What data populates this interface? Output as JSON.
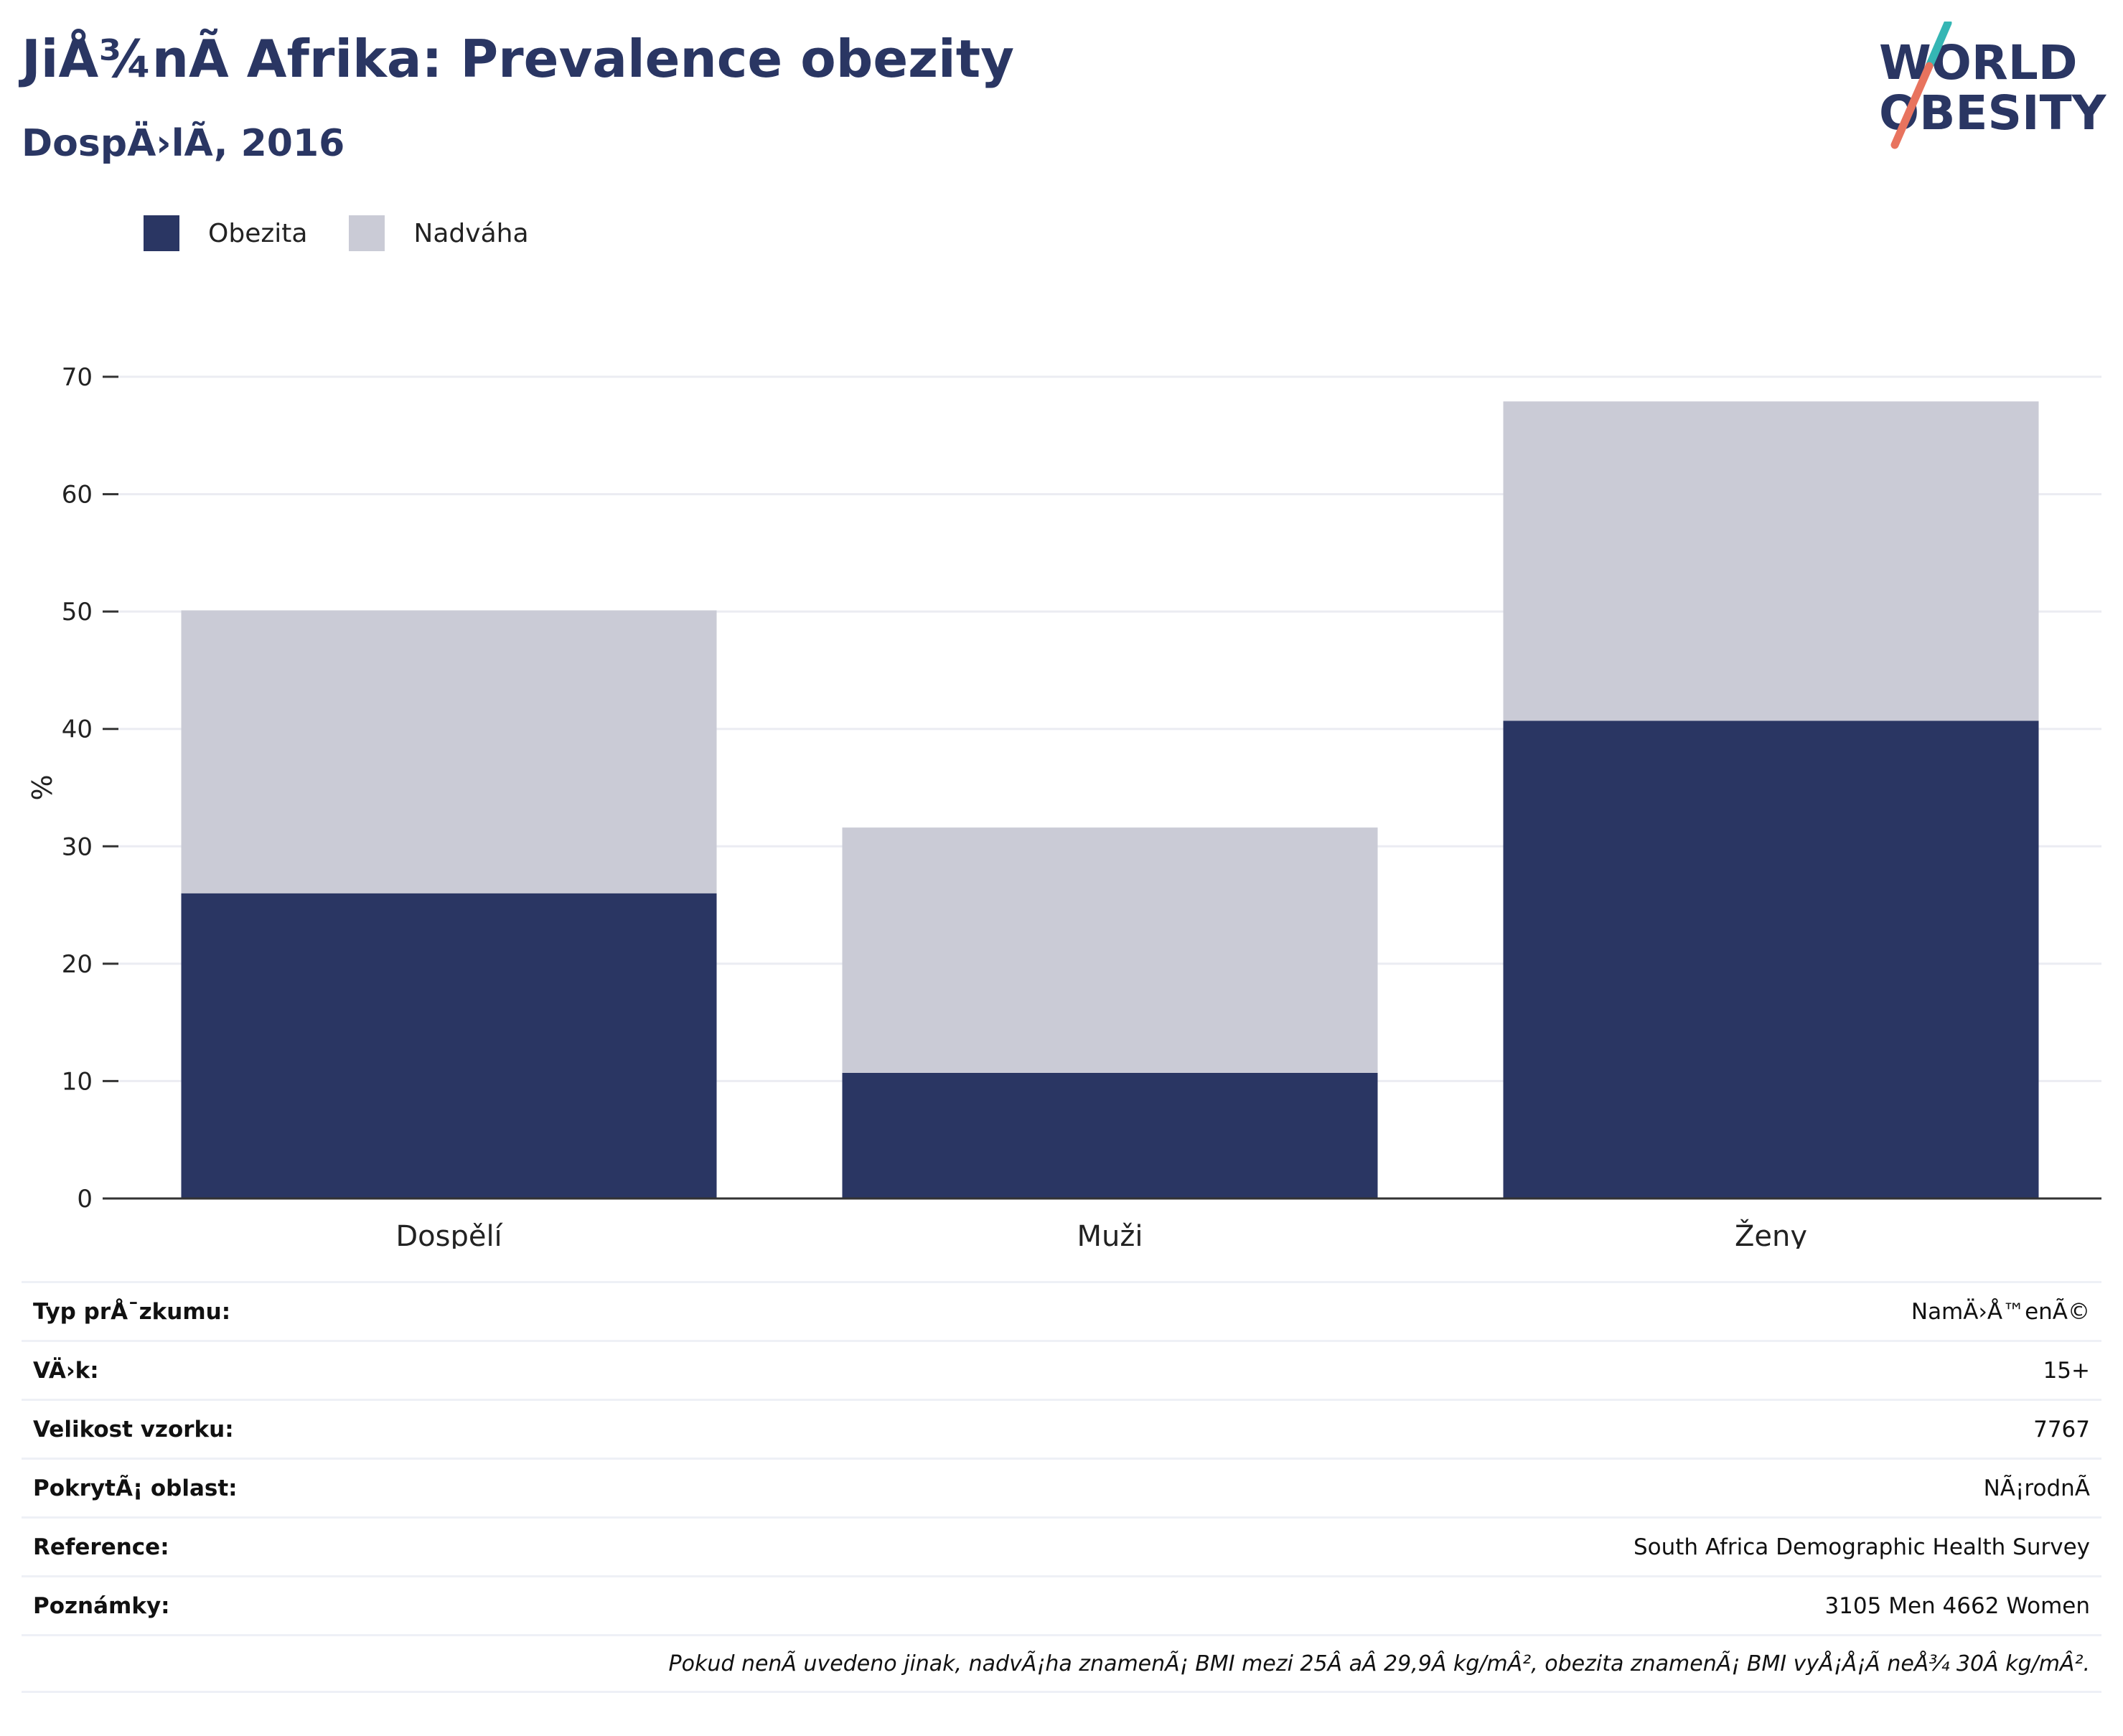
{
  "header": {
    "title": "JiÅ¾nÃ Afrika: Prevalence obezity",
    "subtitle": "DospÄ›lÃ, 2016"
  },
  "logo": {
    "line1": "WORLD",
    "line2": "OBESITY",
    "accent_colors": [
      "#35b6b4",
      "#e8735e"
    ],
    "text_color": "#2a3663"
  },
  "legend": {
    "items": [
      {
        "label": "Obezita",
        "color": "#2a3663"
      },
      {
        "label": "Nadváha",
        "color": "#cacbd6"
      }
    ]
  },
  "chart_data": {
    "type": "bar",
    "stacked": true,
    "categories": [
      "Dospělí",
      "Muži",
      "Ženy"
    ],
    "series": [
      {
        "name": "Obezita",
        "color": "#2a3663",
        "values": [
          26.0,
          10.7,
          40.7
        ]
      },
      {
        "name": "Nadváha",
        "color": "#cacbd6",
        "values": [
          24.1,
          20.9,
          27.2
        ]
      }
    ],
    "ylabel": "%",
    "ylim": [
      0,
      70
    ],
    "yticks": [
      0,
      10,
      20,
      30,
      40,
      50,
      60,
      70
    ],
    "grid": true,
    "legend_position": "top-left"
  },
  "info": {
    "rows": [
      {
        "label": "Typ prÅ¯zkumu:",
        "value": "NamÄ›Å™enÃ©"
      },
      {
        "label": "VÄ›k:",
        "value": "15+"
      },
      {
        "label": "Velikost vzorku:",
        "value": "7767"
      },
      {
        "label": "PokrytÃ¡ oblast:",
        "value": "NÃ¡rodnÃ"
      },
      {
        "label": "Reference:",
        "value": "South Africa Demographic Health Survey"
      },
      {
        "label": "Poznámky:",
        "value": "3105 Men 4662 Women"
      }
    ],
    "note": "Pokud nenÃ uvedeno jinak, nadvÃ¡ha znamenÃ¡ BMI mezi 25Â aÂ 29,9Â kg/mÂ², obezita znamenÃ¡ BMI vyÅ¡Å¡Ã neÅ¾ 30Â kg/mÂ²."
  }
}
